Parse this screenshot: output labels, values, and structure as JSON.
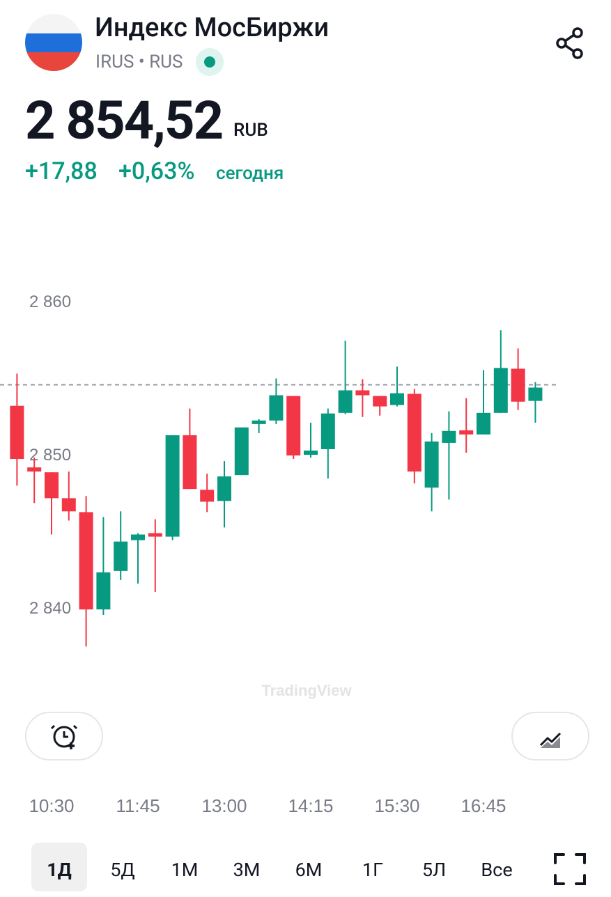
{
  "header": {
    "title": "Индекс МосБиржи",
    "ticker": "IRUS",
    "exchange": "RUS",
    "price": "2 854,52",
    "currency": "RUB",
    "change": "+17,88",
    "change_percent": "+0,63%",
    "period": "сегодня"
  },
  "chart_data": {
    "type": "candlestick",
    "watermark": "TradingView",
    "categories": [
      null,
      null,
      "10:30",
      null,
      null,
      null,
      null,
      "11:45",
      null,
      null,
      null,
      null,
      "13:00",
      null,
      null,
      null,
      null,
      "14:15",
      null,
      null,
      null,
      null,
      "15:30",
      null,
      null,
      null,
      null,
      "16:45",
      null,
      null,
      null
    ],
    "open": [
      2853.15,
      2849.13,
      2848.81,
      2847.12,
      2846.21,
      2839.86,
      2842.37,
      2844.38,
      2844.84,
      2844.61,
      2851.23,
      2847.67,
      2846.94,
      2848.63,
      2851.96,
      2852.19,
      2853.79,
      2849.95,
      2850.32,
      2852.69,
      2854.16,
      2853.79,
      2853.2,
      2853.93,
      2847.81,
      2850.73,
      2851.55,
      2851.28,
      2852.69,
      2855.57,
      2853.47
    ],
    "high": [
      2855.25,
      2849.77,
      2848.81,
      2848.86,
      2847.26,
      2845.89,
      2846.26,
      2844.84,
      2845.75,
      2851.23,
      2852.97,
      2848.72,
      2849.54,
      2851.74,
      2852.28,
      2854.93,
      2853.79,
      2852.05,
      2852.97,
      2857.4,
      2854.89,
      2853.79,
      2855.71,
      2854.25,
      2851.37,
      2852.79,
      2853.65,
      2855.48,
      2858.08,
      2856.89,
      2854.7
    ],
    "low": [
      2847.94,
      2846.8,
      2844.75,
      2845.66,
      2837.44,
      2839.5,
      2841.78,
      2841.55,
      2841.0,
      2844.38,
      2847.72,
      2846.21,
      2845.21,
      2848.63,
      2851.37,
      2851.96,
      2849.68,
      2849.77,
      2848.4,
      2852.6,
      2852.42,
      2852.51,
      2853.11,
      2848.08,
      2846.26,
      2847.03,
      2850.09,
      2851.28,
      2852.69,
      2852.88,
      2852.05
    ],
    "close": [
      2849.68,
      2848.86,
      2847.12,
      2846.26,
      2839.86,
      2842.28,
      2844.29,
      2844.75,
      2844.61,
      2851.23,
      2847.72,
      2846.89,
      2848.54,
      2851.74,
      2852.19,
      2853.84,
      2849.91,
      2850.23,
      2852.65,
      2854.16,
      2853.84,
      2853.11,
      2853.97,
      2848.86,
      2850.82,
      2851.51,
      2851.28,
      2852.69,
      2855.62,
      2853.42,
      2854.34
    ],
    "up_color": "#089981",
    "down_color": "#f23645",
    "reference_line": 2854.52,
    "ylim": [
      2836,
      2866
    ],
    "yticks": [
      {
        "value": 2840,
        "label": "2 840"
      },
      {
        "value": 2850,
        "label": "2 850"
      },
      {
        "value": 2860,
        "label": "2 860"
      }
    ]
  },
  "ranges": [
    "1Д",
    "5Д",
    "1М",
    "3М",
    "6М",
    "1Г",
    "5Л",
    "Все"
  ]
}
